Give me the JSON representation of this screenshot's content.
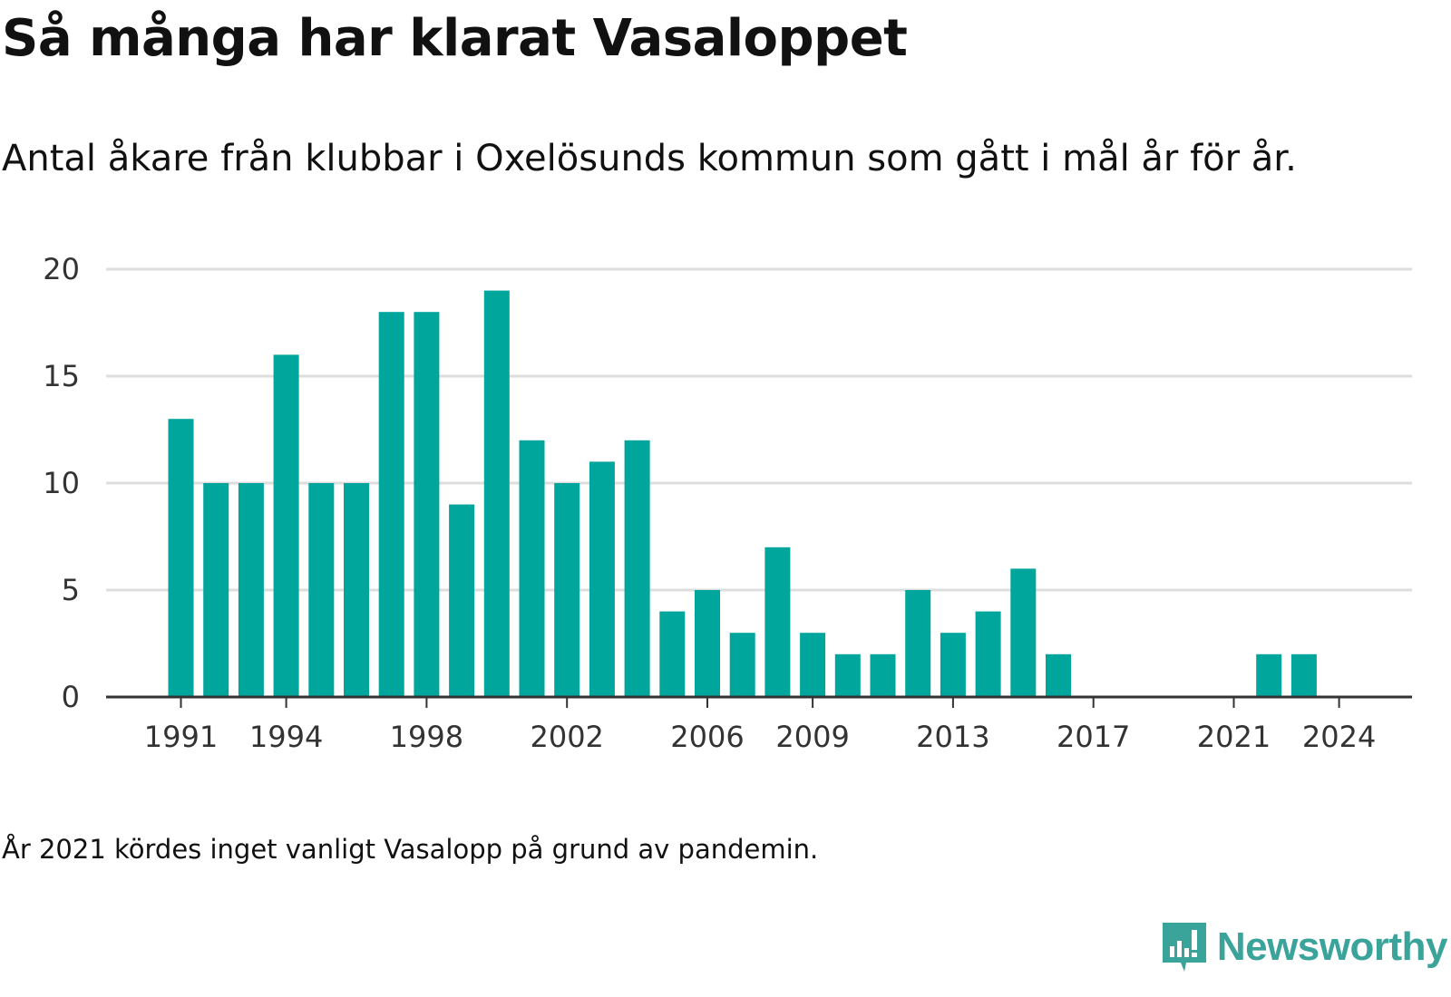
{
  "header": {
    "title": "Så många har klarat Vasaloppet",
    "subtitle": "Antal åkare från klubbar i Oxelösunds kommun som gått i mål år för år."
  },
  "footer": {
    "note": "År 2021 kördes inget vanligt Vasalopp på grund av pandemin.",
    "brand": "Newsworthy"
  },
  "colors": {
    "bar": "#00a59c",
    "grid": "#dddddd",
    "axis": "#333333",
    "brand": "#3aa39a"
  },
  "chart_data": {
    "type": "bar",
    "categories": [
      "1991",
      "1992",
      "1993",
      "1994",
      "1995",
      "1996",
      "1997",
      "1998",
      "1999",
      "2000",
      "2001",
      "2002",
      "2003",
      "2004",
      "2005",
      "2006",
      "2007",
      "2008",
      "2009",
      "2010",
      "2011",
      "2012",
      "2013",
      "2014",
      "2015",
      "2016",
      "2017",
      "2018",
      "2019",
      "2020",
      "2021",
      "2022",
      "2023",
      "2024"
    ],
    "values": [
      13,
      10,
      10,
      16,
      10,
      10,
      18,
      18,
      9,
      19,
      12,
      10,
      11,
      12,
      4,
      5,
      3,
      7,
      3,
      2,
      2,
      5,
      3,
      4,
      6,
      2,
      0,
      0,
      0,
      0,
      0,
      2,
      2,
      0
    ],
    "xticks": [
      "1991",
      "1994",
      "1998",
      "2002",
      "2006",
      "2009",
      "2013",
      "2017",
      "2021",
      "2024"
    ],
    "yticks": [
      0,
      5,
      10,
      15,
      20
    ],
    "ylim": [
      0,
      20
    ],
    "grid": true
  }
}
